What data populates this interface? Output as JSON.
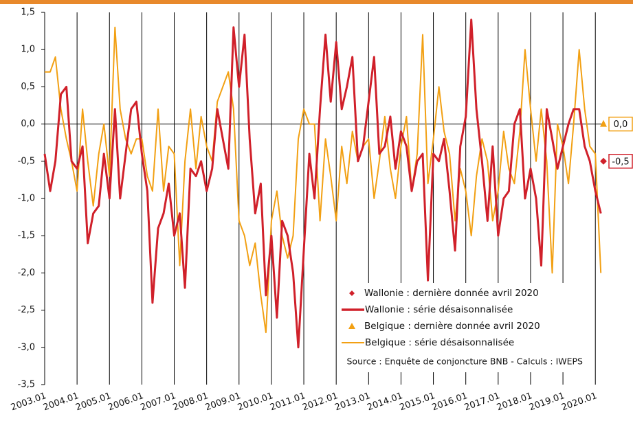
{
  "chart_data": {
    "type": "line",
    "source": "Source : Enquête de conjoncture BNB - Calculs : IWEPS",
    "x": [
      2003,
      2003.17,
      2003.33,
      2003.5,
      2003.67,
      2003.83,
      2004,
      2004.17,
      2004.33,
      2004.5,
      2004.67,
      2004.83,
      2005,
      2005.17,
      2005.33,
      2005.5,
      2005.67,
      2005.83,
      2006,
      2006.17,
      2006.33,
      2006.5,
      2006.67,
      2006.83,
      2007,
      2007.17,
      2007.33,
      2007.5,
      2007.67,
      2007.83,
      2008,
      2008.17,
      2008.33,
      2008.5,
      2008.67,
      2008.83,
      2009,
      2009.17,
      2009.33,
      2009.5,
      2009.67,
      2009.83,
      2010,
      2010.17,
      2010.33,
      2010.5,
      2010.67,
      2010.83,
      2011,
      2011.17,
      2011.33,
      2011.5,
      2011.67,
      2011.83,
      2012,
      2012.17,
      2012.33,
      2012.5,
      2012.67,
      2012.83,
      2013,
      2013.17,
      2013.33,
      2013.5,
      2013.67,
      2013.83,
      2014,
      2014.17,
      2014.33,
      2014.5,
      2014.67,
      2014.83,
      2015,
      2015.17,
      2015.33,
      2015.5,
      2015.67,
      2015.83,
      2016,
      2016.17,
      2016.33,
      2016.5,
      2016.67,
      2016.83,
      2017,
      2017.17,
      2017.33,
      2017.5,
      2017.67,
      2017.83,
      2018,
      2018.17,
      2018.33,
      2018.5,
      2018.67,
      2018.83,
      2019,
      2019.17,
      2019.33,
      2019.5,
      2019.67,
      2019.83,
      2020,
      2020.17
    ],
    "series": [
      {
        "name": "Wallonie : série désaisonnalisée",
        "color": "#d0202a",
        "values": [
          -0.4,
          -0.9,
          -0.5,
          0.4,
          0.5,
          -0.5,
          -0.6,
          -0.3,
          -1.6,
          -1.2,
          -1.1,
          -0.4,
          -1.0,
          0.2,
          -1.0,
          -0.4,
          0.2,
          0.3,
          -0.4,
          -0.9,
          -2.4,
          -1.4,
          -1.2,
          -0.8,
          -1.5,
          -1.2,
          -2.2,
          -0.6,
          -0.7,
          -0.5,
          -0.9,
          -0.6,
          0.2,
          -0.2,
          -0.6,
          1.3,
          0.5,
          1.2,
          -0.2,
          -1.2,
          -0.8,
          -2.3,
          -1.5,
          -2.6,
          -1.3,
          -1.5,
          -2.0,
          -3.0,
          -1.7,
          -0.4,
          -1.0,
          0.2,
          1.2,
          0.3,
          1.1,
          0.2,
          0.5,
          0.9,
          -0.5,
          -0.3,
          0.3,
          0.9,
          -0.4,
          -0.3,
          0.1,
          -0.6,
          -0.1,
          -0.3,
          -0.9,
          -0.5,
          -0.4,
          -2.1,
          -0.4,
          -0.5,
          -0.2,
          -0.9,
          -1.7,
          -0.3,
          0.1,
          1.4,
          0.2,
          -0.5,
          -1.3,
          -0.3,
          -1.5,
          -1.0,
          -0.9,
          0.0,
          0.2,
          -1.0,
          -0.6,
          -1.0,
          -1.9,
          0.2,
          -0.2,
          -0.6,
          -0.3,
          0.0,
          0.2,
          0.2,
          -0.3,
          -0.5,
          -0.9,
          -1.2
        ],
        "last": {
          "name": "Wallonie : dernière donnée avril 2020",
          "x": 2020.25,
          "values": [
            -0.5
          ],
          "value_labels": [
            "-0,5"
          ],
          "marker": "diamond"
        }
      },
      {
        "name": "Belgique : série désaisonnalisée",
        "color": "#f2a013",
        "values": [
          0.7,
          0.7,
          0.9,
          0.2,
          -0.2,
          -0.5,
          -0.9,
          0.2,
          -0.5,
          -1.1,
          -0.4,
          0.0,
          -0.7,
          1.3,
          0.2,
          -0.2,
          -0.4,
          -0.2,
          -0.2,
          -0.7,
          -0.9,
          0.2,
          -0.9,
          -0.3,
          -0.4,
          -1.9,
          -0.5,
          0.2,
          -0.6,
          0.1,
          -0.3,
          -0.5,
          0.3,
          0.5,
          0.7,
          0.2,
          -1.3,
          -1.5,
          -1.9,
          -1.6,
          -2.3,
          -2.8,
          -1.3,
          -0.9,
          -1.5,
          -1.8,
          -1.5,
          -0.2,
          0.2,
          0.0,
          0.0,
          -1.3,
          -0.2,
          -0.7,
          -1.3,
          -0.3,
          -0.8,
          -0.1,
          -0.5,
          -0.3,
          -0.2,
          -1.0,
          -0.5,
          0.1,
          -0.6,
          -1.0,
          -0.3,
          0.1,
          -0.9,
          -0.4,
          1.2,
          -0.8,
          -0.2,
          0.5,
          -0.1,
          -0.4,
          -1.3,
          -0.6,
          -0.9,
          -1.5,
          -0.7,
          -0.2,
          -0.5,
          -1.3,
          -0.9,
          -0.1,
          -0.6,
          -0.8,
          -0.1,
          1.0,
          0.2,
          -0.5,
          0.2,
          -0.5,
          -2.0,
          0.0,
          -0.3,
          -0.8,
          0.0,
          1.0,
          0.2,
          -0.3,
          -0.4,
          -2.0
        ],
        "last": {
          "name": "Belgique : dernière donnée avril 2020",
          "x": 2020.25,
          "values": [
            0.0
          ],
          "value_labels": [
            "0,0"
          ],
          "marker": "triangle"
        }
      }
    ],
    "xlim": [
      2003,
      2020.25
    ],
    "xticks": [
      {
        "value": 2003,
        "label": "2003.01"
      },
      {
        "value": 2004,
        "label": "2004.01"
      },
      {
        "value": 2005,
        "label": "2005.01"
      },
      {
        "value": 2006,
        "label": "2006.01"
      },
      {
        "value": 2007,
        "label": "2007.01"
      },
      {
        "value": 2008,
        "label": "2008.01"
      },
      {
        "value": 2009,
        "label": "2009.01"
      },
      {
        "value": 2010,
        "label": "2010.01"
      },
      {
        "value": 2011,
        "label": "2011.01"
      },
      {
        "value": 2012,
        "label": "2012.01"
      },
      {
        "value": 2013,
        "label": "2013.01"
      },
      {
        "value": 2014,
        "label": "2014.01"
      },
      {
        "value": 2015,
        "label": "2015.01"
      },
      {
        "value": 2016,
        "label": "2016.01"
      },
      {
        "value": 2017,
        "label": "2017.01"
      },
      {
        "value": 2018,
        "label": "2018.01"
      },
      {
        "value": 2019,
        "label": "2019.01"
      },
      {
        "value": 2020,
        "label": "2020.01"
      }
    ],
    "ylim": [
      -3.5,
      1.5
    ],
    "yticks": [
      {
        "value": 1.5,
        "label": "1,5"
      },
      {
        "value": 1.0,
        "label": "1,0"
      },
      {
        "value": 0.5,
        "label": "0,5"
      },
      {
        "value": 0.0,
        "label": "0,0"
      },
      {
        "value": -0.5,
        "label": "-0,5"
      },
      {
        "value": -1.0,
        "label": "-1,0"
      },
      {
        "value": -1.5,
        "label": "-1,5"
      },
      {
        "value": -2.0,
        "label": "-2,0"
      },
      {
        "value": -2.5,
        "label": "-2,5"
      },
      {
        "value": -3.0,
        "label": "-3,0"
      },
      {
        "value": -3.5,
        "label": "-3,5"
      }
    ],
    "xgrid": true,
    "zero_line": true
  }
}
